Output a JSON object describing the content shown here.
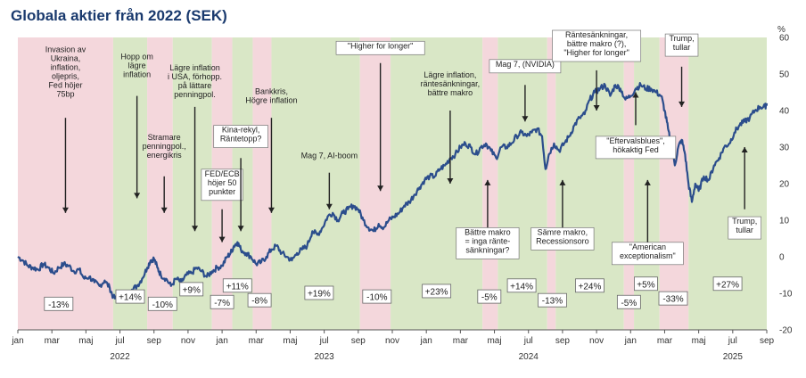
{
  "title": "Globala aktier från 2022 (SEK)",
  "chart_data": {
    "type": "line",
    "title": "Globala aktier från 2022 (SEK)",
    "y_unit": "%",
    "ylim": [
      -20,
      60
    ],
    "yticks": [
      -20,
      -10,
      0,
      10,
      20,
      30,
      40,
      50,
      60
    ],
    "x_range": [
      "2022-01-01",
      "2025-09-01"
    ],
    "month_ticks": [
      {
        "label": "jan",
        "m": 0
      },
      {
        "label": "mar",
        "m": 2
      },
      {
        "label": "maj",
        "m": 4
      },
      {
        "label": "jul",
        "m": 6
      },
      {
        "label": "sep",
        "m": 8
      },
      {
        "label": "nov",
        "m": 10
      },
      {
        "label": "jan",
        "m": 12
      },
      {
        "label": "mar",
        "m": 14
      },
      {
        "label": "maj",
        "m": 16
      },
      {
        "label": "jul",
        "m": 18
      },
      {
        "label": "sep",
        "m": 20
      },
      {
        "label": "nov",
        "m": 22
      },
      {
        "label": "jan",
        "m": 24
      },
      {
        "label": "mar",
        "m": 26
      },
      {
        "label": "maj",
        "m": 28
      },
      {
        "label": "jul",
        "m": 30
      },
      {
        "label": "sep",
        "m": 32
      },
      {
        "label": "nov",
        "m": 34
      },
      {
        "label": "jan",
        "m": 36
      },
      {
        "label": "mar",
        "m": 38
      },
      {
        "label": "maj",
        "m": 40
      },
      {
        "label": "jul",
        "m": 42
      },
      {
        "label": "sep",
        "m": 44
      }
    ],
    "year_labels": [
      {
        "label": "2022",
        "m": 6
      },
      {
        "label": "2023",
        "m": 18
      },
      {
        "label": "2024",
        "m": 30
      },
      {
        "label": "2025",
        "m": 42
      }
    ],
    "line_color": "#2b4d8c",
    "series": [
      {
        "values": [
          [
            0,
            0
          ],
          [
            0.3,
            -1
          ],
          [
            0.6,
            -2.5
          ],
          [
            0.9,
            -3
          ],
          [
            1.2,
            -3.5
          ],
          [
            1.5,
            -2
          ],
          [
            1.8,
            -3
          ],
          [
            2.1,
            -4.5
          ],
          [
            2.4,
            -3
          ],
          [
            2.7,
            -2
          ],
          [
            3.0,
            -2.5
          ],
          [
            3.3,
            -4
          ],
          [
            3.6,
            -3.5
          ],
          [
            3.9,
            -6
          ],
          [
            4.2,
            -5.5
          ],
          [
            4.5,
            -7
          ],
          [
            4.8,
            -8
          ],
          [
            5.1,
            -6.5
          ],
          [
            5.4,
            -8.5
          ],
          [
            5.6,
            -11
          ],
          [
            5.9,
            -12
          ],
          [
            6.1,
            -10
          ],
          [
            6.4,
            -11
          ],
          [
            6.7,
            -9
          ],
          [
            7.0,
            -8
          ],
          [
            7.3,
            -6
          ],
          [
            7.6,
            -3
          ],
          [
            7.8,
            -1
          ],
          [
            8.0,
            -0.5
          ],
          [
            8.2,
            -3
          ],
          [
            8.4,
            -5
          ],
          [
            8.7,
            -6
          ],
          [
            9.0,
            -8
          ],
          [
            9.3,
            -6
          ],
          [
            9.6,
            -7
          ],
          [
            9.9,
            -5
          ],
          [
            10.2,
            -4.5
          ],
          [
            10.5,
            -3
          ],
          [
            10.8,
            -4
          ],
          [
            11.1,
            -5.5
          ],
          [
            11.4,
            -4
          ],
          [
            11.7,
            -3
          ],
          [
            12.0,
            -2.5
          ],
          [
            12.3,
            0
          ],
          [
            12.5,
            1
          ],
          [
            12.7,
            3
          ],
          [
            12.9,
            4
          ],
          [
            13.1,
            2
          ],
          [
            13.4,
            1
          ],
          [
            13.7,
            0
          ],
          [
            14.0,
            -2
          ],
          [
            14.3,
            -1.5
          ],
          [
            14.6,
            0
          ],
          [
            14.9,
            2
          ],
          [
            15.2,
            3
          ],
          [
            15.5,
            1
          ],
          [
            15.8,
            0
          ],
          [
            16.1,
            -1
          ],
          [
            16.4,
            1
          ],
          [
            16.7,
            2
          ],
          [
            17.0,
            3
          ],
          [
            17.3,
            7
          ],
          [
            17.6,
            6
          ],
          [
            17.9,
            8
          ],
          [
            18.2,
            11
          ],
          [
            18.5,
            12
          ],
          [
            18.8,
            10
          ],
          [
            19.1,
            12
          ],
          [
            19.4,
            13
          ],
          [
            19.7,
            14
          ],
          [
            20.0,
            13
          ],
          [
            20.3,
            10
          ],
          [
            20.6,
            8
          ],
          [
            20.9,
            7
          ],
          [
            21.2,
            9
          ],
          [
            21.5,
            8
          ],
          [
            21.8,
            10
          ],
          [
            22.1,
            11
          ],
          [
            22.4,
            12
          ],
          [
            22.7,
            14
          ],
          [
            23.0,
            15
          ],
          [
            23.3,
            17
          ],
          [
            23.6,
            19
          ],
          [
            23.9,
            21
          ],
          [
            24.2,
            22
          ],
          [
            24.5,
            22
          ],
          [
            24.8,
            24
          ],
          [
            25.1,
            25
          ],
          [
            25.4,
            27
          ],
          [
            25.7,
            28
          ],
          [
            26.0,
            30
          ],
          [
            26.3,
            31
          ],
          [
            26.6,
            30
          ],
          [
            26.9,
            28
          ],
          [
            27.2,
            30
          ],
          [
            27.5,
            31
          ],
          [
            27.8,
            29
          ],
          [
            28.1,
            27
          ],
          [
            28.4,
            30
          ],
          [
            28.7,
            30
          ],
          [
            29.0,
            31
          ],
          [
            29.3,
            33
          ],
          [
            29.6,
            34
          ],
          [
            29.9,
            33
          ],
          [
            30.2,
            34
          ],
          [
            30.5,
            35
          ],
          [
            30.8,
            33
          ],
          [
            31.0,
            24
          ],
          [
            31.2,
            28
          ],
          [
            31.5,
            31
          ],
          [
            31.8,
            29
          ],
          [
            32.1,
            31
          ],
          [
            32.4,
            33
          ],
          [
            32.7,
            36
          ],
          [
            33.0,
            38
          ],
          [
            33.3,
            39
          ],
          [
            33.6,
            43
          ],
          [
            33.9,
            45
          ],
          [
            34.2,
            46
          ],
          [
            34.5,
            47
          ],
          [
            34.8,
            44
          ],
          [
            35.1,
            47
          ],
          [
            35.4,
            46
          ],
          [
            35.7,
            43
          ],
          [
            36.0,
            44
          ],
          [
            36.3,
            46
          ],
          [
            36.6,
            47
          ],
          [
            36.9,
            46
          ],
          [
            37.2,
            46
          ],
          [
            37.5,
            45
          ],
          [
            37.8,
            44
          ],
          [
            38.0,
            40
          ],
          [
            38.2,
            35
          ],
          [
            38.4,
            30
          ],
          [
            38.6,
            25
          ],
          [
            38.8,
            30
          ],
          [
            39.0,
            32
          ],
          [
            39.2,
            28
          ],
          [
            39.4,
            20
          ],
          [
            39.6,
            15
          ],
          [
            39.8,
            20
          ],
          [
            40.0,
            18
          ],
          [
            40.3,
            22
          ],
          [
            40.6,
            21
          ],
          [
            40.9,
            25
          ],
          [
            41.2,
            27
          ],
          [
            41.5,
            30
          ],
          [
            41.8,
            31
          ],
          [
            42.1,
            34
          ],
          [
            42.4,
            36
          ],
          [
            42.7,
            37
          ],
          [
            43.0,
            38
          ],
          [
            43.3,
            40
          ],
          [
            43.6,
            41
          ],
          [
            43.9,
            41
          ],
          [
            44.0,
            42
          ]
        ]
      }
    ],
    "bands": [
      {
        "start": 0.0,
        "end": 5.6,
        "color": "pink"
      },
      {
        "start": 5.6,
        "end": 7.6,
        "color": "green"
      },
      {
        "start": 7.6,
        "end": 9.1,
        "color": "pink"
      },
      {
        "start": 9.1,
        "end": 11.4,
        "color": "green"
      },
      {
        "start": 11.4,
        "end": 12.6,
        "color": "pink"
      },
      {
        "start": 12.6,
        "end": 13.8,
        "color": "green"
      },
      {
        "start": 13.8,
        "end": 14.9,
        "color": "pink"
      },
      {
        "start": 14.9,
        "end": 20.1,
        "color": "green"
      },
      {
        "start": 20.1,
        "end": 21.9,
        "color": "pink"
      },
      {
        "start": 21.9,
        "end": 27.3,
        "color": "green"
      },
      {
        "start": 27.3,
        "end": 28.2,
        "color": "pink"
      },
      {
        "start": 28.2,
        "end": 31.1,
        "color": "green"
      },
      {
        "start": 31.1,
        "end": 31.6,
        "color": "pink"
      },
      {
        "start": 31.6,
        "end": 35.6,
        "color": "green"
      },
      {
        "start": 35.6,
        "end": 36.2,
        "color": "pink"
      },
      {
        "start": 36.2,
        "end": 37.7,
        "color": "green"
      },
      {
        "start": 37.7,
        "end": 39.4,
        "color": "pink"
      },
      {
        "start": 39.4,
        "end": 44.0,
        "color": "green"
      }
    ],
    "band_colors": {
      "pink": "#f4d7dc",
      "green": "#d9e7c6"
    },
    "period_returns": [
      {
        "label": "-13%",
        "m": 2.4,
        "y": -13
      },
      {
        "label": "+14%",
        "m": 6.6,
        "y": -11
      },
      {
        "label": "-10%",
        "m": 8.5,
        "y": -13
      },
      {
        "label": "+9%",
        "m": 10.2,
        "y": -9
      },
      {
        "label": "-7%",
        "m": 12.0,
        "y": -12.5
      },
      {
        "label": "+11%",
        "m": 12.9,
        "y": -8
      },
      {
        "label": "-8%",
        "m": 14.2,
        "y": -12
      },
      {
        "label": "+19%",
        "m": 17.7,
        "y": -10
      },
      {
        "label": "-10%",
        "m": 21.1,
        "y": -11
      },
      {
        "label": "+23%",
        "m": 24.6,
        "y": -9.5
      },
      {
        "label": "-5%",
        "m": 27.7,
        "y": -11
      },
      {
        "label": "+14%",
        "m": 29.6,
        "y": -8
      },
      {
        "label": "-13%",
        "m": 31.4,
        "y": -12
      },
      {
        "label": "+24%",
        "m": 33.6,
        "y": -8
      },
      {
        "label": "-5%",
        "m": 35.9,
        "y": -12.5
      },
      {
        "label": "+5%",
        "m": 36.9,
        "y": -7.5
      },
      {
        "label": "-33%",
        "m": 38.5,
        "y": -11.5
      },
      {
        "label": "+27%",
        "m": 41.7,
        "y": -7.5
      }
    ],
    "annotations": [
      {
        "lines": [
          "Invasion av",
          "Ukraina,",
          "inflation,",
          "oljepris,",
          "Fed höjer",
          "75bp"
        ],
        "m": 2.8,
        "y": 56,
        "arrow_from": 38,
        "arrow_to": 12,
        "boxed": false
      },
      {
        "lines": [
          "Hopp om",
          "lägre",
          "inflation"
        ],
        "m": 7.0,
        "y": 54,
        "arrow_from": 44,
        "arrow_to": 16,
        "boxed": false
      },
      {
        "lines": [
          "Stramare",
          "penningpol.,",
          "energikris"
        ],
        "m": 8.6,
        "y": 32,
        "arrow_from": 22,
        "arrow_to": 12,
        "boxed": false
      },
      {
        "lines": [
          "Lägre inflation",
          "i USA, förhopp.",
          "på lättare",
          "penningpol."
        ],
        "m": 10.4,
        "y": 51,
        "arrow_from": 41,
        "arrow_to": 7,
        "boxed": false
      },
      {
        "lines": [
          "FED/ECB",
          "höjer 50",
          "punkter"
        ],
        "m": 12.0,
        "y": 22,
        "arrow_from": 13,
        "arrow_to": 4,
        "boxed": true
      },
      {
        "lines": [
          "Kina-rekyl,",
          "Räntetopp?"
        ],
        "m": 13.1,
        "y": 34,
        "arrow_from": 27,
        "arrow_to": 7,
        "boxed": true
      },
      {
        "lines": [
          "Bankkris,",
          "Högre inflation"
        ],
        "m": 14.9,
        "y": 44.5,
        "arrow_from": 38,
        "arrow_to": 12,
        "boxed": false
      },
      {
        "lines": [
          "Mag 7, AI-boom"
        ],
        "m": 18.3,
        "y": 27,
        "arrow_from": 23,
        "arrow_to": 13,
        "boxed": false
      },
      {
        "lines": [
          "\"Higher for longer\""
        ],
        "m": 21.3,
        "y": 57,
        "arrow_from": 53,
        "arrow_to": 18,
        "boxed": true
      },
      {
        "lines": [
          "Lägre inflation,",
          "räntesänkningar,",
          "bättre makro"
        ],
        "m": 25.4,
        "y": 49,
        "arrow_from": 40,
        "arrow_to": 20,
        "boxed": false
      },
      {
        "lines": [
          "Mag 7, (NVIDIA)"
        ],
        "m": 29.8,
        "y": 52,
        "arrow_from": 47,
        "arrow_to": 37,
        "boxed": true
      },
      {
        "lines": [
          "Bättre makro",
          "= inga ränte-",
          "sänkningar?"
        ],
        "m": 27.6,
        "y": 6,
        "arrow_from": 8,
        "arrow_to": 21,
        "boxed": true,
        "up": true
      },
      {
        "lines": [
          "Sämre makro,",
          "Recessionsoro"
        ],
        "m": 32.0,
        "y": 6,
        "arrow_from": 8,
        "arrow_to": 21,
        "boxed": true,
        "up": true
      },
      {
        "lines": [
          "Räntesänkningar,",
          "bättre makro (?),",
          "\"Higher for longer\""
        ],
        "m": 34.0,
        "y": 60,
        "arrow_from": 51,
        "arrow_to": 40,
        "boxed": true
      },
      {
        "lines": [
          "\"Eftervalsblues\",",
          "hökaktig Fed"
        ],
        "m": 36.3,
        "y": 31,
        "arrow_from": 36,
        "arrow_to": 45,
        "boxed": true,
        "up": true
      },
      {
        "lines": [
          "\"American",
          "exceptionalism\""
        ],
        "m": 37.0,
        "y": 2,
        "arrow_from": 4,
        "arrow_to": 21,
        "boxed": true,
        "up": true
      },
      {
        "lines": [
          "Trump,",
          "tullar"
        ],
        "m": 39.0,
        "y": 59,
        "arrow_from": 52,
        "arrow_to": 41,
        "boxed": true
      },
      {
        "lines": [
          "Trump,",
          "tullar"
        ],
        "m": 42.7,
        "y": 9,
        "arrow_from": 13,
        "arrow_to": 30,
        "boxed": true,
        "up": true
      }
    ]
  }
}
